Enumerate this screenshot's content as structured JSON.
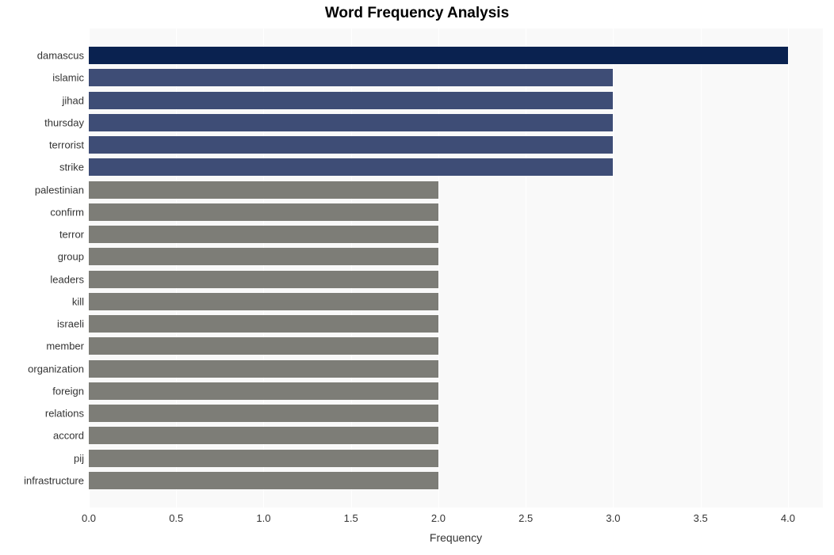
{
  "chart": {
    "type": "bar-horizontal",
    "title": "Word Frequency Analysis",
    "title_fontsize": 19,
    "title_fontweight": "bold",
    "xlabel": "Frequency",
    "xlabel_fontsize": 14,
    "background_color": "#ffffff",
    "plot_background": "#f9f9f9",
    "grid_color": "#ffffff",
    "y_tick_fontsize": 13,
    "x_tick_fontsize": 13,
    "xlim": [
      0,
      4.2
    ],
    "xticks": [
      0.0,
      0.5,
      1.0,
      1.5,
      2.0,
      2.5,
      3.0,
      3.5,
      4.0
    ],
    "xtick_labels": [
      "0.0",
      "0.5",
      "1.0",
      "1.5",
      "2.0",
      "2.5",
      "3.0",
      "3.5",
      "4.0"
    ],
    "bar_height_ratio": 0.78,
    "plot_top_padding": 20,
    "plot_bottom_padding": 20,
    "colors": {
      "highest": "#0a2250",
      "mid": "#3e4d76",
      "low": "#7d7d77"
    },
    "data": [
      {
        "label": "damascus",
        "value": 4,
        "color_key": "highest"
      },
      {
        "label": "islamic",
        "value": 3,
        "color_key": "mid"
      },
      {
        "label": "jihad",
        "value": 3,
        "color_key": "mid"
      },
      {
        "label": "thursday",
        "value": 3,
        "color_key": "mid"
      },
      {
        "label": "terrorist",
        "value": 3,
        "color_key": "mid"
      },
      {
        "label": "strike",
        "value": 3,
        "color_key": "mid"
      },
      {
        "label": "palestinian",
        "value": 2,
        "color_key": "low"
      },
      {
        "label": "confirm",
        "value": 2,
        "color_key": "low"
      },
      {
        "label": "terror",
        "value": 2,
        "color_key": "low"
      },
      {
        "label": "group",
        "value": 2,
        "color_key": "low"
      },
      {
        "label": "leaders",
        "value": 2,
        "color_key": "low"
      },
      {
        "label": "kill",
        "value": 2,
        "color_key": "low"
      },
      {
        "label": "israeli",
        "value": 2,
        "color_key": "low"
      },
      {
        "label": "member",
        "value": 2,
        "color_key": "low"
      },
      {
        "label": "organization",
        "value": 2,
        "color_key": "low"
      },
      {
        "label": "foreign",
        "value": 2,
        "color_key": "low"
      },
      {
        "label": "relations",
        "value": 2,
        "color_key": "low"
      },
      {
        "label": "accord",
        "value": 2,
        "color_key": "low"
      },
      {
        "label": "pij",
        "value": 2,
        "color_key": "low"
      },
      {
        "label": "infrastructure",
        "value": 2,
        "color_key": "low"
      }
    ]
  }
}
